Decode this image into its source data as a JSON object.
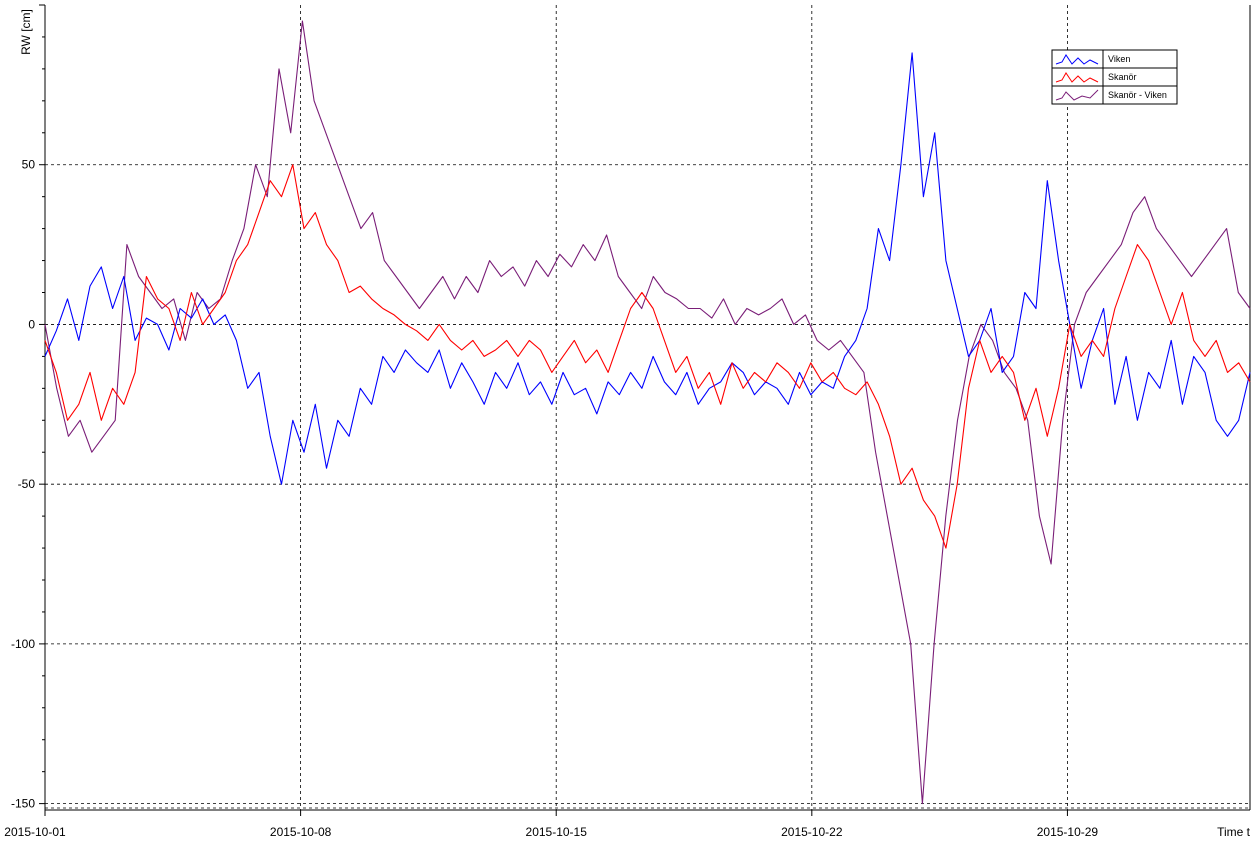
{
  "chart_data": {
    "type": "line",
    "title": "",
    "xlabel": "Time t",
    "ylabel": "RW [cm]",
    "x_start": "2015-10-01",
    "x_end": "2015-11-03",
    "xlim": [
      "2015-10-01",
      "2015-11-03"
    ],
    "ylim": [
      -152,
      100
    ],
    "x_ticks": [
      "2015-10-01",
      "2015-10-08",
      "2015-10-15",
      "2015-10-22",
      "2015-10-29"
    ],
    "y_ticks": [
      50,
      0,
      -50,
      -100,
      -150
    ],
    "grid": true,
    "legend_position": "top-right",
    "series": [
      {
        "name": "Viken",
        "color": "#0000ff",
        "values": [
          -10,
          -2,
          8,
          -5,
          12,
          18,
          5,
          15,
          -5,
          2,
          0,
          -8,
          5,
          2,
          8,
          0,
          3,
          -5,
          -20,
          -15,
          -35,
          -50,
          -30,
          -40,
          -25,
          -45,
          -30,
          -35,
          -20,
          -25,
          -10,
          -15,
          -8,
          -12,
          -15,
          -8,
          -20,
          -12,
          -18,
          -25,
          -15,
          -20,
          -12,
          -22,
          -18,
          -25,
          -15,
          -22,
          -20,
          -28,
          -18,
          -22,
          -15,
          -20,
          -10,
          -18,
          -22,
          -15,
          -25,
          -20,
          -18,
          -12,
          -15,
          -22,
          -18,
          -20,
          -25,
          -15,
          -22,
          -18,
          -20,
          -10,
          -5,
          5,
          30,
          20,
          50,
          85,
          40,
          60,
          20,
          5,
          -10,
          -5,
          5,
          -15,
          -10,
          10,
          5,
          45,
          20,
          0,
          -20,
          -5,
          5,
          -25,
          -10,
          -30,
          -15,
          -20,
          -5,
          -25,
          -10,
          -15,
          -30,
          -35,
          -30,
          -15
        ]
      },
      {
        "name": "Skanör",
        "color": "#ff0000",
        "values": [
          -5,
          -15,
          -30,
          -25,
          -15,
          -30,
          -20,
          -25,
          -15,
          15,
          8,
          5,
          -5,
          10,
          0,
          5,
          10,
          20,
          25,
          35,
          45,
          40,
          50,
          30,
          35,
          25,
          20,
          10,
          12,
          8,
          5,
          3,
          0,
          -2,
          -5,
          0,
          -5,
          -8,
          -5,
          -10,
          -8,
          -5,
          -10,
          -5,
          -8,
          -15,
          -10,
          -5,
          -12,
          -8,
          -15,
          -5,
          5,
          10,
          5,
          -5,
          -15,
          -10,
          -20,
          -15,
          -25,
          -12,
          -20,
          -15,
          -18,
          -12,
          -15,
          -20,
          -12,
          -18,
          -15,
          -20,
          -22,
          -18,
          -25,
          -35,
          -50,
          -45,
          -55,
          -60,
          -70,
          -50,
          -20,
          -5,
          -15,
          -10,
          -15,
          -30,
          -20,
          -35,
          -20,
          0,
          -10,
          -5,
          -10,
          5,
          15,
          25,
          20,
          10,
          0,
          10,
          -5,
          -10,
          -5,
          -15,
          -12,
          -18
        ]
      },
      {
        "name": "Skanör - Viken",
        "color": "#7a1e78",
        "values": [
          0,
          -20,
          -35,
          -30,
          -40,
          -35,
          -30,
          25,
          15,
          10,
          5,
          8,
          -5,
          10,
          5,
          8,
          20,
          30,
          50,
          40,
          80,
          60,
          95,
          70,
          60,
          50,
          40,
          30,
          35,
          20,
          15,
          10,
          5,
          10,
          15,
          8,
          15,
          10,
          20,
          15,
          18,
          12,
          20,
          15,
          22,
          18,
          25,
          20,
          28,
          15,
          10,
          5,
          15,
          10,
          8,
          5,
          5,
          2,
          8,
          0,
          5,
          3,
          5,
          8,
          0,
          3,
          -5,
          -8,
          -5,
          -10,
          -15,
          -40,
          -60,
          -80,
          -100,
          -150,
          -100,
          -60,
          -30,
          -10,
          0,
          -5,
          -15,
          -20,
          -30,
          -60,
          -75,
          -30,
          0,
          10,
          15,
          20,
          25,
          35,
          40,
          30,
          25,
          20,
          15,
          20,
          25,
          30,
          10,
          5
        ]
      }
    ]
  }
}
